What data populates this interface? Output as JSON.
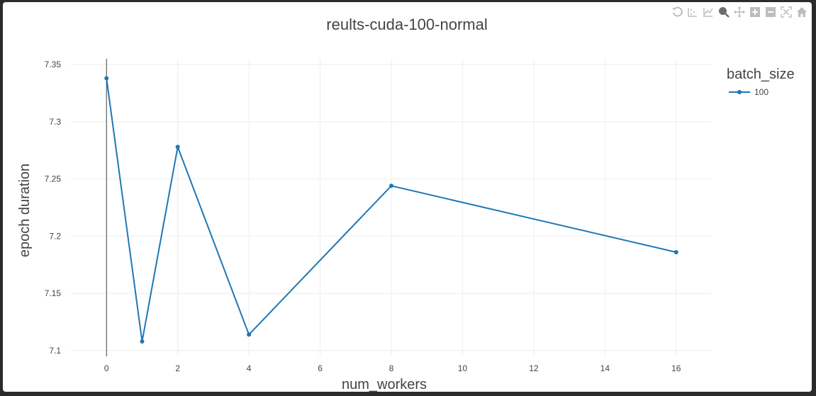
{
  "modebar": {
    "buttons": [
      {
        "name": "reset-axes-icon"
      },
      {
        "name": "compare-data-icon"
      },
      {
        "name": "closest-data-icon"
      },
      {
        "name": "zoom-icon",
        "active": true
      },
      {
        "name": "pan-icon"
      },
      {
        "name": "zoom-in-icon"
      },
      {
        "name": "zoom-out-icon"
      },
      {
        "name": "autoscale-icon"
      },
      {
        "name": "home-icon"
      }
    ],
    "color": "#bdbdbd"
  },
  "chart_data": {
    "type": "line",
    "title": "reults-cuda-100-normal",
    "xlabel": "num_workers",
    "ylabel": "epoch duration",
    "xlim": [
      -1,
      17
    ],
    "ylim": [
      7.095,
      7.355
    ],
    "xticks": [
      0,
      2,
      4,
      6,
      8,
      10,
      12,
      14,
      16
    ],
    "yticks": [
      7.1,
      7.15,
      7.2,
      7.25,
      7.3,
      7.35
    ],
    "grid": true,
    "legend": {
      "title": "batch_size",
      "position": "top-right"
    },
    "series": [
      {
        "name": "100",
        "color": "#1f77b4",
        "x": [
          0,
          1,
          2,
          4,
          8,
          16
        ],
        "y": [
          7.338,
          7.108,
          7.278,
          7.114,
          7.244,
          7.186
        ]
      }
    ]
  }
}
